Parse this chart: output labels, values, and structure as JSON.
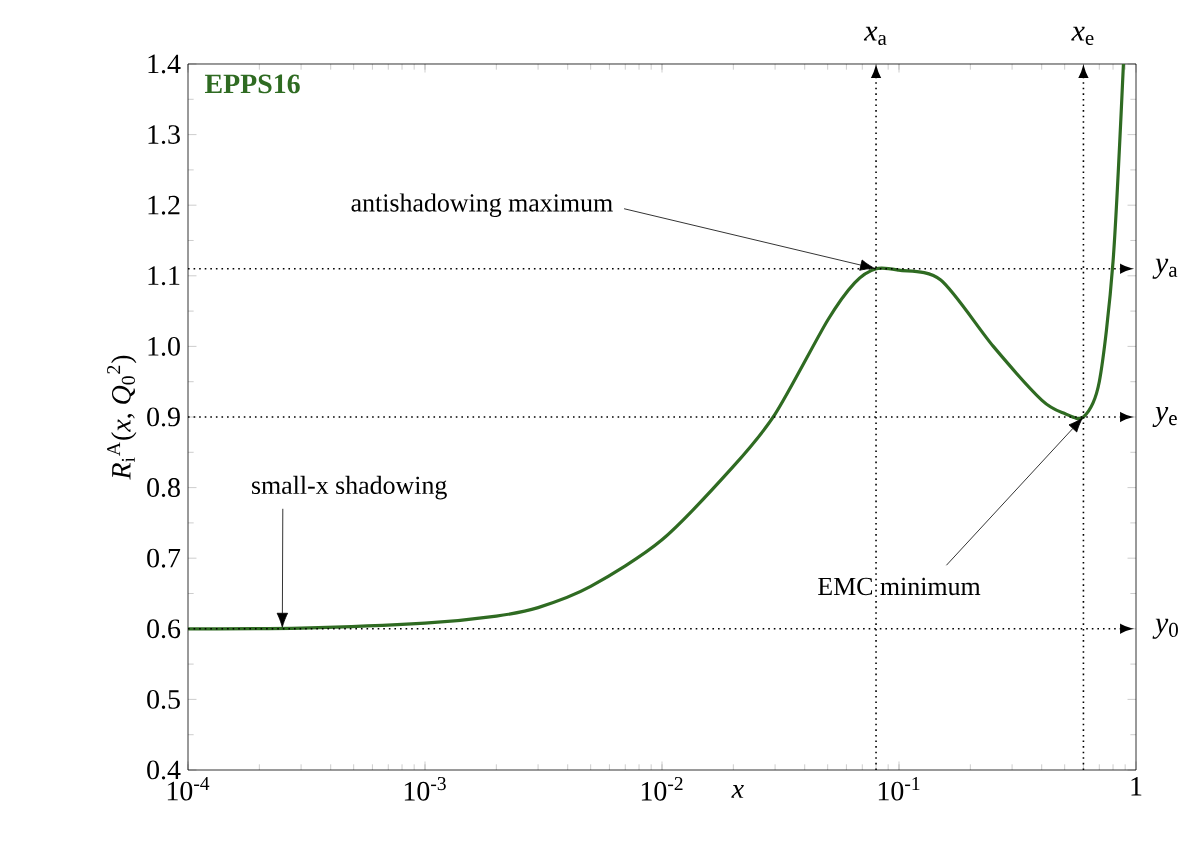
{
  "chart_data": {
    "type": "line",
    "xlabel": "*x*",
    "ylabel": "*R*$_{i}$$^{A}$(*x*, *Q*$_{0}$$^{2}$)",
    "log": "x",
    "grid": false,
    "legend": false,
    "marker": "none",
    "line_style": "solid",
    "xlim": [
      0.0001,
      1
    ],
    "ylim": [
      0.4,
      1.4
    ],
    "xticks": [
      {
        "value": 0.0001,
        "label": "10$^{-4}$"
      },
      {
        "value": 0.001,
        "label": "10$^{-3}$"
      },
      {
        "value": 0.01,
        "label": "10$^{-2}$"
      },
      {
        "value": 0.1,
        "label": "10$^{-1}$"
      },
      1
    ],
    "yticks": [
      0.4,
      0.5,
      0.6,
      0.7,
      0.8,
      0.9,
      {
        "value": 1,
        "label": "1.0"
      },
      1.1,
      1.2,
      1.3,
      1.4
    ],
    "series": [
      {
        "name": "EPPS16",
        "color": "#2f6b22",
        "x": [
          0.0001,
          0.0003,
          0.001,
          0.002,
          0.003,
          0.005,
          0.01,
          0.02,
          0.03,
          0.05,
          0.065,
          0.08,
          0.1,
          0.15,
          0.25,
          0.4,
          0.5,
          0.6,
          0.7,
          0.8,
          0.885
        ],
        "values": [
          0.6,
          0.601,
          0.608,
          0.618,
          0.63,
          0.66,
          0.726,
          0.83,
          0.904,
          1.037,
          1.09,
          1.11,
          1.108,
          1.094,
          1.0,
          0.924,
          0.905,
          0.9,
          0.95,
          1.12,
          1.4
        ]
      }
    ],
    "ref_lines": [
      {
        "axis": "x",
        "value": 0.08,
        "label": "*x*$_{a}$",
        "line_style": "dotted"
      },
      {
        "axis": "x",
        "value": 0.6,
        "label": "*x*$_{e}$",
        "line_style": "dotted"
      },
      {
        "axis": "y",
        "value": 1.11,
        "label": "*y*$_{a}$",
        "line_style": "dotted"
      },
      {
        "axis": "y",
        "value": 0.9,
        "label": "*y*$_{e}$",
        "line_style": "dotted"
      },
      {
        "axis": "y",
        "value": 0.6,
        "label": "*y*$_{0}$",
        "line_style": "dotted"
      }
    ],
    "annotations": [
      {
        "text": "antishadowing maximum",
        "x": 0.08,
        "y": 1.11
      },
      {
        "text": "small-x shadowing",
        "x": 0.00025,
        "y": 0.6
      },
      {
        "text": "EMC minimum",
        "x": 0.6,
        "y": 0.9
      }
    ]
  }
}
